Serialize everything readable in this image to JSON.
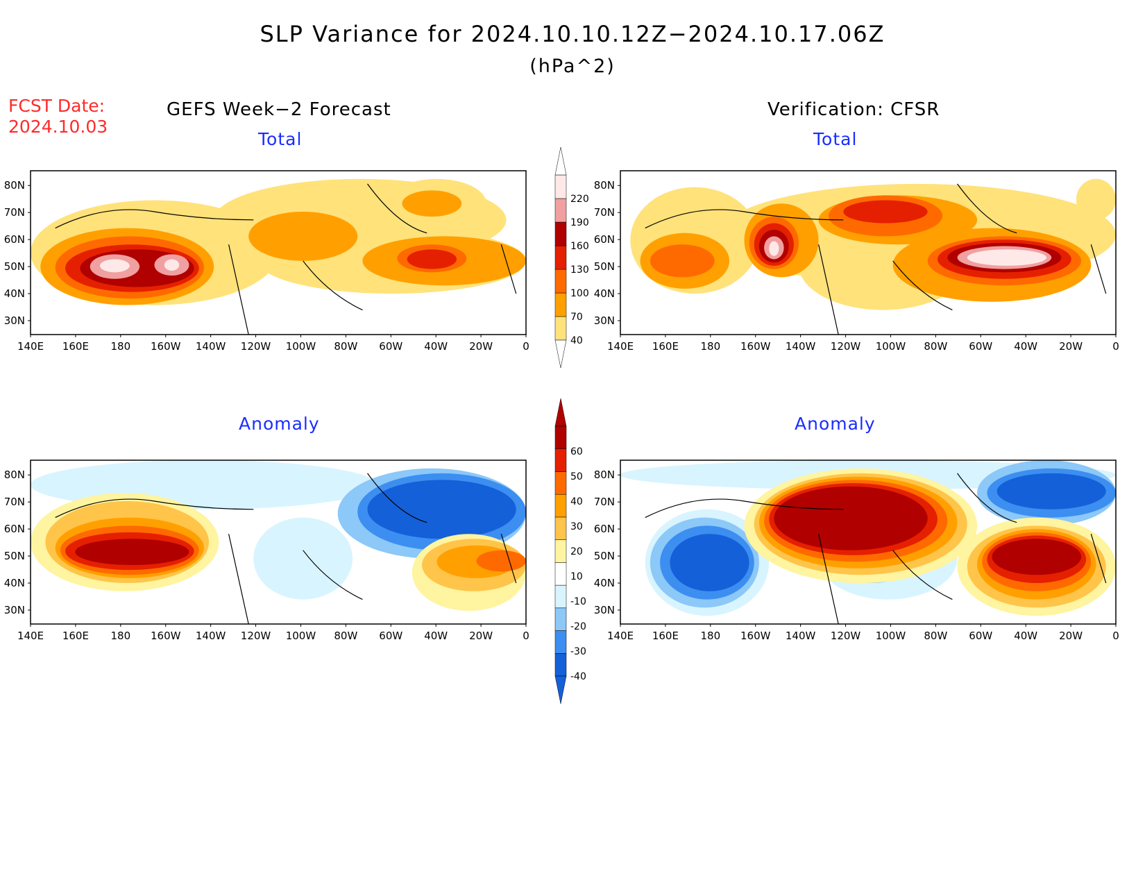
{
  "figure": {
    "title": "SLP Variance for 2024.10.10.12Z−2024.10.17.06Z",
    "units": "(hPa^2)",
    "fcst_label": "FCST Date:",
    "fcst_date": "2024.10.03",
    "left_column_title": "GEFS Week−2 Forecast",
    "right_column_title": "Verification: CFSR"
  },
  "panels": [
    {
      "id": "gefs-total",
      "subtitle": "Total"
    },
    {
      "id": "cfsr-total",
      "subtitle": "Total"
    },
    {
      "id": "gefs-anomaly",
      "subtitle": "Anomaly"
    },
    {
      "id": "cfsr-anomaly",
      "subtitle": "Anomaly"
    }
  ],
  "axes": {
    "lon_labels": [
      "140E",
      "160E",
      "180",
      "160W",
      "140W",
      "120W",
      "100W",
      "80W",
      "60W",
      "40W",
      "20W",
      "0"
    ],
    "lat_labels": [
      "80N",
      "70N",
      "60N",
      "50N",
      "40N",
      "30N"
    ]
  },
  "colorbars": {
    "total": {
      "levels": [
        40,
        70,
        100,
        130,
        160,
        190,
        220
      ],
      "colors": [
        "#ffe27a",
        "#ffa000",
        "#ff6a00",
        "#e52000",
        "#b00000",
        "#f0a0a0",
        "#ffe8e8"
      ]
    },
    "anomaly": {
      "levels": [
        -40,
        -30,
        -20,
        -10,
        10,
        20,
        30,
        40,
        50,
        60
      ],
      "neg_colors": [
        "#1460d8",
        "#3c8ef0",
        "#8cc8f8",
        "#d8f4ff"
      ],
      "pos_colors": [
        "#fff4a0",
        "#ffc44a",
        "#ffa000",
        "#ff6a00",
        "#e52000",
        "#b00000"
      ]
    }
  },
  "colors": {
    "fcst_date": "#ff2a2a",
    "subtitle": "#1a2dff"
  }
}
